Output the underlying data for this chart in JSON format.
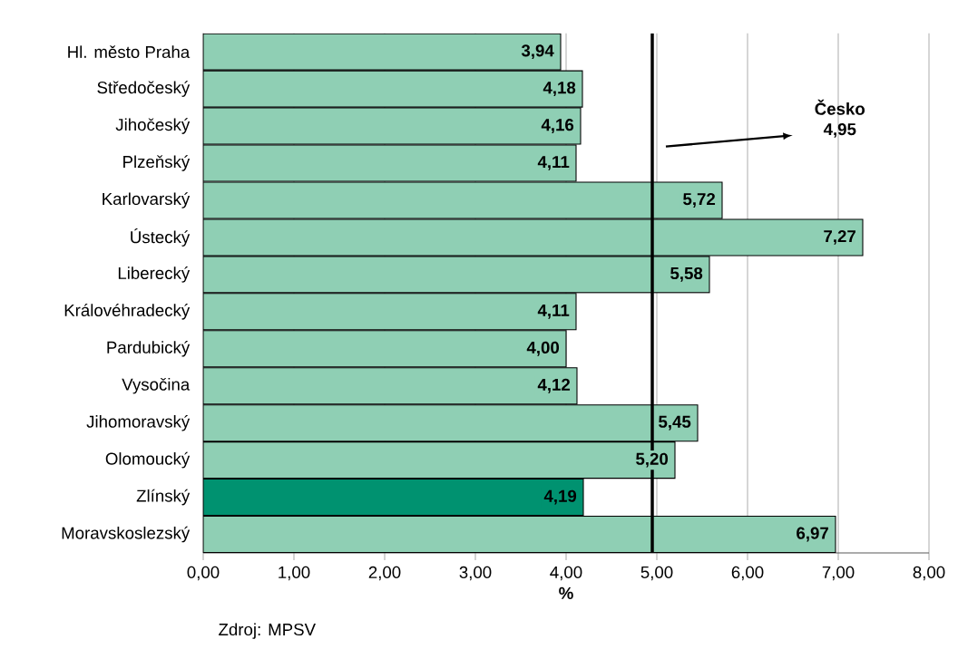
{
  "chart_data": {
    "type": "bar",
    "orientation": "horizontal",
    "categories": [
      "Hl. město Praha",
      "Středočeský",
      "Jihočeský",
      "Plzeňský",
      "Karlovarský",
      "Ústecký",
      "Liberecký",
      "Královéhradecký",
      "Pardubický",
      "Vysočina",
      "Jihomoravský",
      "Olomoucký",
      "Zlínský",
      "Moravskoslezský"
    ],
    "values": [
      3.94,
      4.18,
      4.16,
      4.11,
      5.72,
      7.27,
      5.58,
      4.11,
      4.0,
      4.12,
      5.45,
      5.2,
      4.19,
      6.97
    ],
    "value_labels": [
      "3,94",
      "4,18",
      "4,16",
      "4,11",
      "5,72",
      "7,27",
      "5,58",
      "4,11",
      "4,00",
      "4,12",
      "5,45",
      "5,20",
      "4,19",
      "6,97"
    ],
    "colors": [
      "#8fcfb4",
      "#8fcfb4",
      "#8fcfb4",
      "#8fcfb4",
      "#8fcfb4",
      "#8fcfb4",
      "#8fcfb4",
      "#8fcfb4",
      "#8fcfb4",
      "#8fcfb4",
      "#8fcfb4",
      "#8fcfb4",
      "#009270",
      "#8fcfb4"
    ],
    "xlim": [
      0,
      8
    ],
    "xticks": [
      {
        "value": 0,
        "label": "0,00"
      },
      {
        "value": 1,
        "label": "1,00"
      },
      {
        "value": 2,
        "label": "2,00"
      },
      {
        "value": 3,
        "label": "3,00"
      },
      {
        "value": 4,
        "label": "4,00"
      },
      {
        "value": 5,
        "label": "5,00"
      },
      {
        "value": 6,
        "label": "6,00"
      },
      {
        "value": 7,
        "label": "7,00"
      },
      {
        "value": 8,
        "label": "8,00"
      }
    ],
    "xlabel": "%",
    "grid": "x",
    "ref_lines": [
      {
        "axis": "x",
        "value": 4.95,
        "label": "Česko 4,95",
        "color": "#000000"
      }
    ],
    "annotations": [
      "Zdroj: MPSV"
    ]
  }
}
